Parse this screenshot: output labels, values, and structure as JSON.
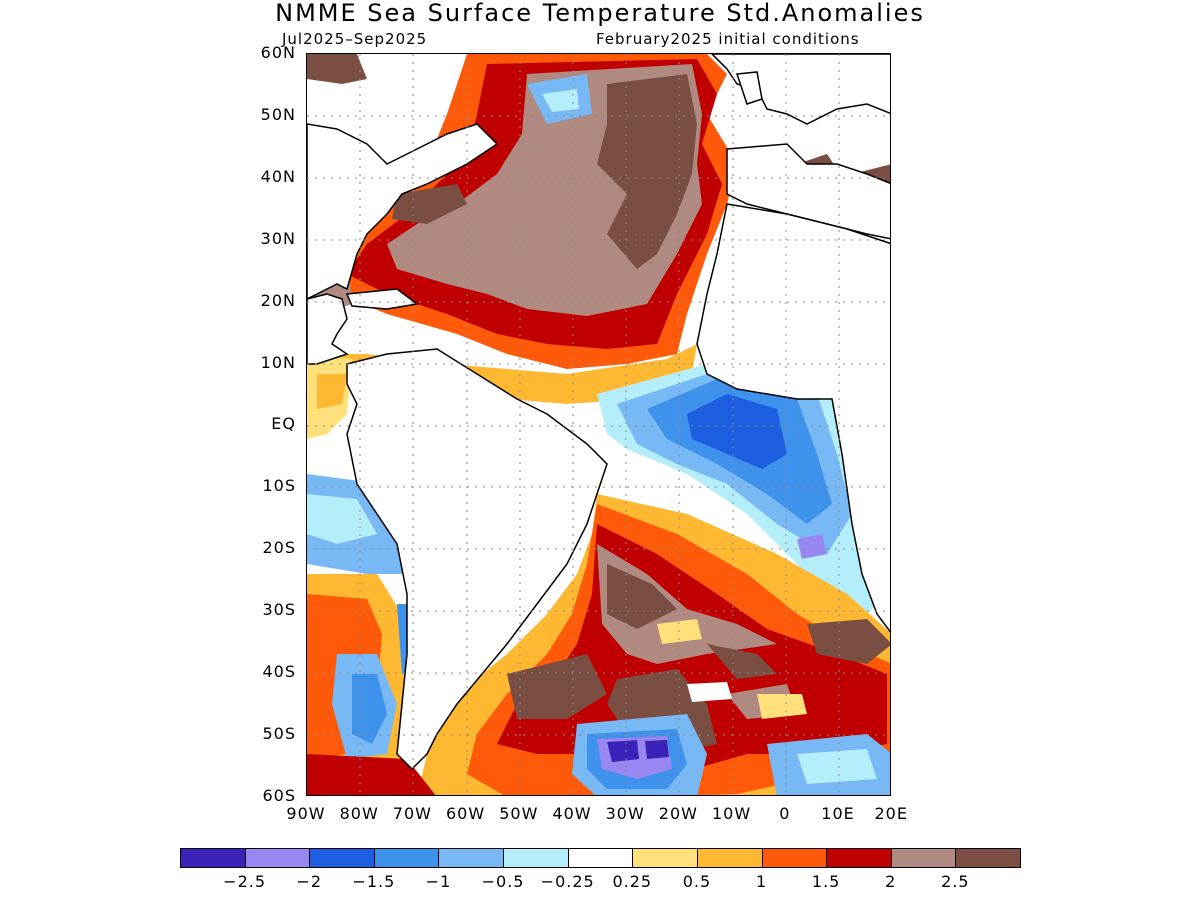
{
  "title": "NMME Sea Surface Temperature Std.Anomalies",
  "subtitle_left": "Jul2025–Sep2025",
  "subtitle_right": "February2025 initial conditions",
  "lat_labels": [
    "60N",
    "50N",
    "40N",
    "30N",
    "20N",
    "10N",
    "EQ",
    "10S",
    "20S",
    "30S",
    "40S",
    "50S",
    "60S"
  ],
  "lon_labels": [
    "90W",
    "80W",
    "70W",
    "60W",
    "50W",
    "40W",
    "30W",
    "20W",
    "10W",
    "0",
    "10E",
    "20E"
  ],
  "colorbar": {
    "colors": [
      "#3b22b8",
      "#9a86f0",
      "#1d5fe0",
      "#3e92ec",
      "#78b8f5",
      "#b4eefa",
      "#ffffff",
      "#ffe07a",
      "#ffb832",
      "#ff5a0a",
      "#c00000",
      "#b08a80",
      "#7a4e42"
    ],
    "labels": [
      "−2.5",
      "−2",
      "−1.5",
      "−1",
      "−0.5",
      "−0.25",
      "0.25",
      "0.5",
      "1",
      "1.5",
      "2",
      "2.5"
    ]
  },
  "map_extent": {
    "lon_min": -90,
    "lon_max": 20,
    "lat_min": -60,
    "lat_max": 60
  }
}
